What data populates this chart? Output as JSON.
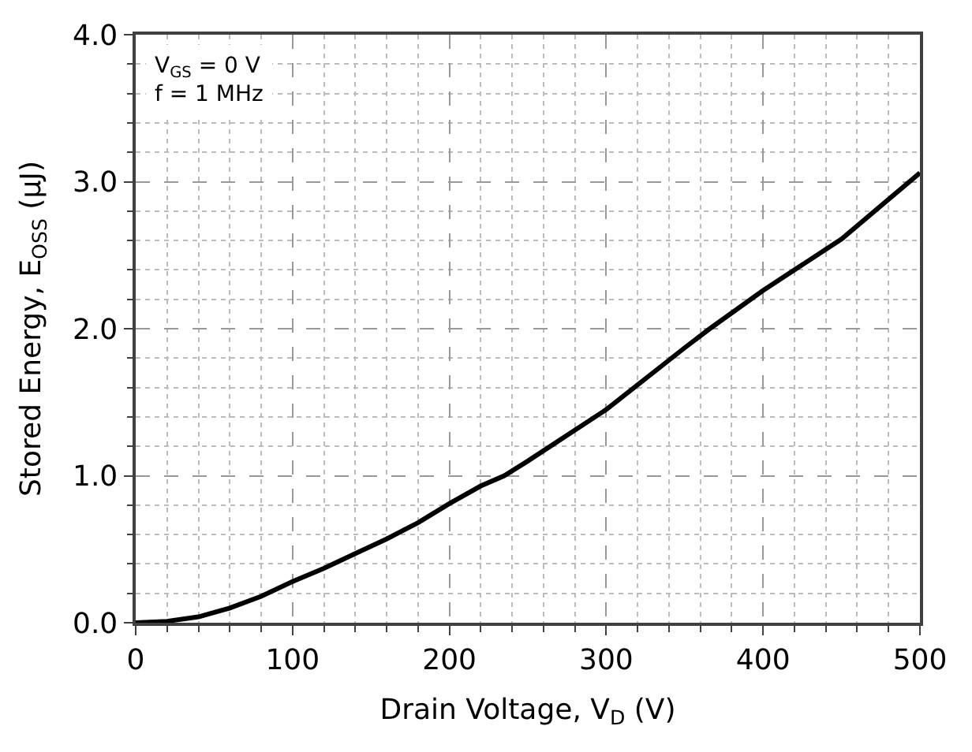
{
  "chart_data": {
    "type": "line",
    "xlabel": "Drain Voltage, V$_{D}$ (V)",
    "ylabel": "Stored Energy, E$_{OSS}$ (μJ)",
    "annotations": [
      "V$_{GS}$ = 0 V",
      "f = 1 MHz"
    ],
    "x": [
      0,
      20,
      40,
      60,
      80,
      100,
      120,
      140,
      160,
      180,
      200,
      220,
      235,
      250,
      300,
      350,
      366,
      400,
      450,
      500
    ],
    "series": [
      {
        "color": "#000000",
        "values": [
          0,
          0.01,
          0.04,
          0.1,
          0.18,
          0.28,
          0.37,
          0.47,
          0.57,
          0.68,
          0.81,
          0.93,
          1.0,
          1.1,
          1.45,
          1.87,
          2.0,
          2.26,
          2.61,
          3.06
        ]
      }
    ],
    "xlim": [
      0,
      500
    ],
    "xticks": [
      0,
      100,
      200,
      300,
      400,
      500
    ],
    "ylim": [
      0,
      4.0
    ],
    "yticks": [
      {
        "value": 0,
        "label": "0.0"
      },
      {
        "value": 1,
        "label": "1.0"
      },
      {
        "value": 2,
        "label": "2.0"
      },
      {
        "value": 3,
        "label": "3.0"
      },
      {
        "value": 4,
        "label": "4.0"
      }
    ],
    "grid": true,
    "marker": "none",
    "line_style": "solid"
  }
}
